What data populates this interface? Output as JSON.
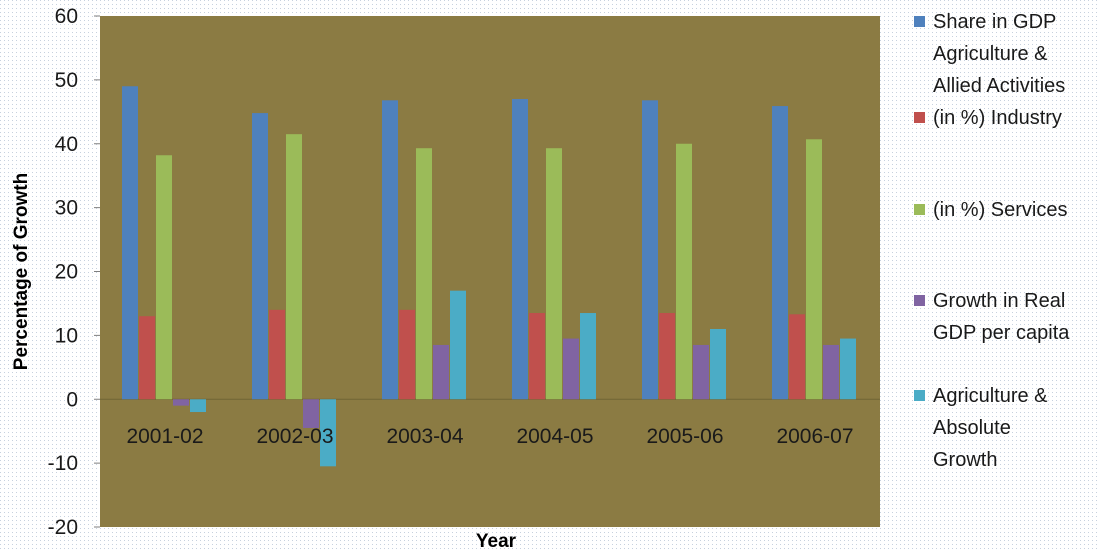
{
  "chart_data": {
    "type": "bar",
    "title": "",
    "xlabel": "Year",
    "ylabel": "Percentage of Growth",
    "ylim": [
      -20,
      60
    ],
    "yticks": [
      60,
      50,
      40,
      30,
      20,
      10,
      0,
      -10,
      -20
    ],
    "categories": [
      "2001-02",
      "2002-03",
      "2003-04",
      "2004-05",
      "2005-06",
      "2006-07"
    ],
    "plot_background": "#8b7b43",
    "legend_position": "right",
    "legend_lines": [
      [
        "Share in GDP",
        "Agriculture &",
        "Allied Activities"
      ],
      [
        "(in %)  Industry"
      ],
      [
        "(in %)  Services"
      ],
      [
        "Growth in Real",
        "GDP per capita"
      ],
      [
        "Agriculture &",
        "Absolute",
        "Growth"
      ]
    ],
    "series": [
      {
        "color": "#4f81bd",
        "values": [
          49,
          44.8,
          46.8,
          47,
          46.8,
          45.9
        ]
      },
      {
        "color": "#c0504d",
        "values": [
          13,
          14,
          14,
          13.5,
          13.5,
          13.3
        ]
      },
      {
        "color": "#9bbb59",
        "values": [
          38.2,
          41.5,
          39.3,
          39.3,
          40,
          40.7
        ]
      },
      {
        "color": "#8064a2",
        "values": [
          -1,
          -4.5,
          8.5,
          9.5,
          8.5,
          8.5
        ]
      },
      {
        "color": "#4bacc6",
        "values": [
          -2,
          -10.5,
          17,
          13.5,
          11,
          9.5
        ]
      }
    ]
  }
}
